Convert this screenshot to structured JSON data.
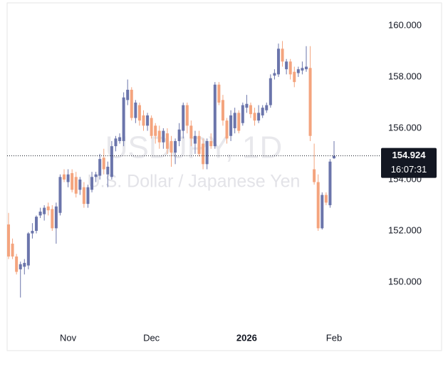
{
  "chart_data": {
    "type": "candlestick",
    "watermark_title": "USDJPY, 1D",
    "watermark_subtitle": "U.S. Dollar / Japanese Yen",
    "categories": [
      null,
      null,
      null,
      null,
      null,
      null,
      null,
      null,
      null,
      null,
      null,
      null,
      null,
      null,
      null,
      "Nov",
      null,
      null,
      null,
      null,
      null,
      null,
      null,
      null,
      null,
      null,
      null,
      null,
      null,
      null,
      null,
      null,
      null,
      null,
      null,
      null,
      "Dec",
      null,
      null,
      null,
      null,
      null,
      null,
      null,
      null,
      null,
      null,
      null,
      null,
      null,
      null,
      null,
      null,
      null,
      null,
      null,
      null,
      null,
      null,
      null,
      "2026",
      null,
      null,
      null,
      null,
      null,
      null,
      null,
      null,
      null,
      null,
      null,
      null,
      null,
      null,
      null,
      null,
      null,
      null,
      null,
      null,
      null,
      "Feb"
    ],
    "open": [
      152.25,
      151.5,
      151.0,
      150.5,
      150.6,
      150.65,
      151.9,
      152.0,
      152.6,
      152.65,
      152.95,
      152.85,
      152.1,
      152.7,
      154.2,
      153.9,
      154.25,
      154.1,
      153.6,
      153.7,
      153.05,
      153.6,
      154.1,
      154.15,
      154.85,
      154.2,
      154.1,
      155.3,
      155.5,
      155.5,
      157.1,
      157.5,
      156.4,
      156.9,
      156.5,
      156.1,
      156.4,
      156.1,
      155.9,
      155.45,
      155.8,
      155.5,
      155.05,
      155.5,
      155.9,
      156.9,
      156.1,
      155.4,
      155.7,
      155.4,
      154.6,
      155.5,
      155.3,
      157.7,
      157.1,
      156.3,
      155.7,
      156.0,
      156.6,
      156.2,
      156.8,
      156.9,
      156.6,
      156.3,
      156.5,
      156.7,
      156.9,
      158.05,
      158.1,
      159.1,
      158.3,
      158.6,
      158.2,
      158.15,
      158.25,
      158.3,
      158.35,
      154.4,
      153.9,
      152.1,
      153.4,
      153.0,
      154.83
    ],
    "high": [
      152.7,
      151.7,
      151.1,
      150.8,
      150.9,
      151.95,
      152.3,
      152.6,
      152.9,
      153.0,
      153.1,
      153.0,
      153.1,
      154.2,
      154.4,
      154.4,
      154.4,
      154.3,
      154.1,
      153.9,
      153.8,
      154.3,
      154.3,
      155.0,
      155.2,
      154.7,
      155.5,
      155.7,
      155.8,
      157.4,
      157.9,
      157.6,
      157.1,
      157.0,
      156.7,
      156.6,
      156.5,
      156.2,
      156.1,
      156.0,
      156.0,
      155.7,
      155.6,
      156.2,
      157.0,
      157.0,
      156.3,
      155.9,
      155.9,
      155.6,
      155.6,
      155.8,
      157.8,
      157.8,
      157.3,
      156.4,
      156.7,
      156.8,
      156.7,
      157.0,
      157.3,
      157.0,
      156.8,
      156.9,
      156.9,
      157.0,
      158.1,
      158.3,
      159.3,
      159.4,
      158.7,
      158.7,
      158.4,
      158.4,
      158.6,
      159.2,
      159.2,
      155.4,
      154.2,
      153.5,
      153.5,
      154.8,
      155.5
    ],
    "low": [
      150.9,
      150.9,
      150.3,
      149.4,
      150.3,
      150.5,
      151.7,
      151.9,
      152.5,
      152.4,
      152.6,
      152.0,
      151.5,
      152.6,
      153.9,
      153.7,
      153.5,
      153.3,
      153.4,
      152.9,
      152.9,
      153.5,
      153.9,
      154.0,
      154.2,
      153.7,
      154.0,
      155.1,
      155.4,
      155.3,
      156.9,
      156.3,
      156.2,
      156.1,
      155.9,
      155.9,
      155.6,
      155.4,
      155.2,
      155.2,
      155.0,
      154.5,
      154.6,
      155.3,
      155.6,
      155.8,
      155.3,
      155.0,
      154.9,
      154.4,
      154.4,
      155.2,
      155.2,
      156.9,
      156.1,
      155.4,
      155.5,
      155.8,
      155.8,
      156.1,
      156.6,
      156.4,
      156.1,
      156.2,
      156.4,
      156.6,
      156.8,
      157.9,
      158.0,
      158.4,
      158.1,
      157.9,
      157.6,
      158.0,
      158.1,
      158.2,
      155.5,
      153.8,
      152.0,
      152.05,
      153.0,
      152.9,
      154.8
    ],
    "close": [
      151.0,
      151.0,
      150.4,
      150.7,
      150.75,
      151.9,
      152.0,
      152.55,
      152.75,
      152.9,
      152.8,
      152.1,
      152.95,
      154.1,
      154.0,
      154.2,
      153.6,
      153.45,
      154.0,
      153.05,
      153.7,
      154.1,
      154.2,
      154.8,
      154.4,
      154.5,
      155.3,
      155.6,
      155.65,
      157.2,
      157.5,
      156.4,
      157.0,
      156.3,
      156.1,
      156.5,
      155.7,
      155.7,
      155.45,
      155.9,
      155.2,
      155.05,
      155.5,
      155.95,
      156.9,
      156.1,
      155.6,
      155.7,
      155.0,
      154.6,
      155.5,
      155.3,
      157.7,
      157.0,
      156.3,
      155.6,
      156.5,
      156.6,
      155.9,
      156.9,
      156.95,
      156.55,
      156.3,
      156.6,
      156.8,
      156.9,
      157.95,
      158.15,
      159.1,
      158.6,
      158.6,
      158.1,
      157.8,
      158.3,
      158.35,
      158.4,
      155.7,
      153.9,
      152.1,
      153.4,
      153.1,
      154.7,
      154.924
    ],
    "up_color": "#6b75ab",
    "down_color": "#f4a47e",
    "current_price": 154.924,
    "current_time": "16:07:31",
    "ylim": [
      148.22,
      160.86
    ],
    "yticks": [
      {
        "value": 150,
        "label": "150.000"
      },
      {
        "value": 152,
        "label": "152.000"
      },
      {
        "value": 154,
        "label": "154.000"
      },
      {
        "value": 156,
        "label": "156.000"
      },
      {
        "value": 158,
        "label": "158.000"
      },
      {
        "value": 160,
        "label": "160.000"
      }
    ],
    "grid": false
  }
}
